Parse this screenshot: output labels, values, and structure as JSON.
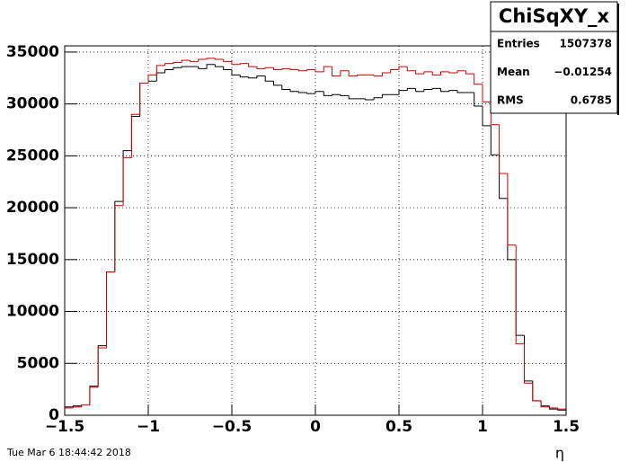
{
  "chart_data": {
    "type": "histogram",
    "bins": [
      -1.5,
      -1.45,
      -1.4,
      -1.35,
      -1.3,
      -1.25,
      -1.2,
      -1.15,
      -1.1,
      -1.05,
      -1.0,
      -0.95,
      -0.9,
      -0.85,
      -0.8,
      -0.75,
      -0.7,
      -0.65,
      -0.6,
      -0.55,
      -0.5,
      -0.45,
      -0.4,
      -0.35,
      -0.3,
      -0.25,
      -0.2,
      -0.15,
      -0.1,
      -0.05,
      0,
      0.05,
      0.1,
      0.15,
      0.2,
      0.25,
      0.3,
      0.35,
      0.4,
      0.45,
      0.5,
      0.55,
      0.6,
      0.65,
      0.7,
      0.75,
      0.8,
      0.85,
      0.9,
      0.95,
      1.0,
      1.05,
      1.1,
      1.15,
      1.2,
      1.25,
      1.3,
      1.35,
      1.4,
      1.45,
      1.5
    ],
    "series": [
      {
        "color": "#000000",
        "values": [
          800,
          900,
          1000,
          2800,
          6700,
          13800,
          20600,
          25500,
          28800,
          32000,
          32200,
          33000,
          33300,
          33500,
          33600,
          33600,
          33400,
          33800,
          33600,
          33300,
          32800,
          32600,
          32500,
          32700,
          32200,
          31800,
          31400,
          31200,
          31100,
          31000,
          31200,
          30800,
          30900,
          30800,
          30500,
          30500,
          30400,
          30600,
          30900,
          30900,
          31300,
          31500,
          31200,
          31400,
          31500,
          31200,
          31300,
          31100,
          31100,
          29800,
          27900,
          25100,
          20900,
          15000,
          7700,
          3300,
          1400,
          900,
          600,
          500
        ]
      },
      {
        "color": "#d00000",
        "values": [
          700,
          800,
          1000,
          2700,
          6500,
          13800,
          20200,
          24800,
          29000,
          32000,
          32800,
          33700,
          33900,
          34000,
          34200,
          34100,
          34300,
          34400,
          34300,
          34100,
          33800,
          33900,
          33600,
          33400,
          33500,
          33300,
          33400,
          33300,
          33200,
          33300,
          33100,
          33600,
          32700,
          33200,
          32700,
          32800,
          32800,
          32700,
          33000,
          33300,
          33600,
          33200,
          32900,
          33100,
          32800,
          33100,
          33000,
          33200,
          32900,
          31900,
          30200,
          28000,
          23300,
          16400,
          6900,
          3100,
          1400,
          800,
          700,
          600
        ]
      }
    ],
    "xlim": [
      -1.5,
      1.5
    ],
    "xticks": [
      {
        "value": -1.5,
        "label": "−1.5"
      },
      {
        "value": -1,
        "label": "−1"
      },
      {
        "value": -0.5,
        "label": "−0.5"
      },
      0,
      0.5,
      1,
      1.5
    ],
    "ylim": [
      0,
      35600
    ],
    "yticks": [
      0,
      5000,
      10000,
      15000,
      20000,
      25000,
      30000,
      35000
    ],
    "grid": true,
    "x_label": "η",
    "stats": {
      "title": "ChiSqXY_x",
      "rows": [
        [
          "Entries",
          "1507378"
        ],
        [
          "Mean",
          "−0.01254"
        ],
        [
          "RMS",
          "0.6785"
        ]
      ]
    },
    "timestamp": "Tue Mar  6 18:44:42 2018"
  }
}
